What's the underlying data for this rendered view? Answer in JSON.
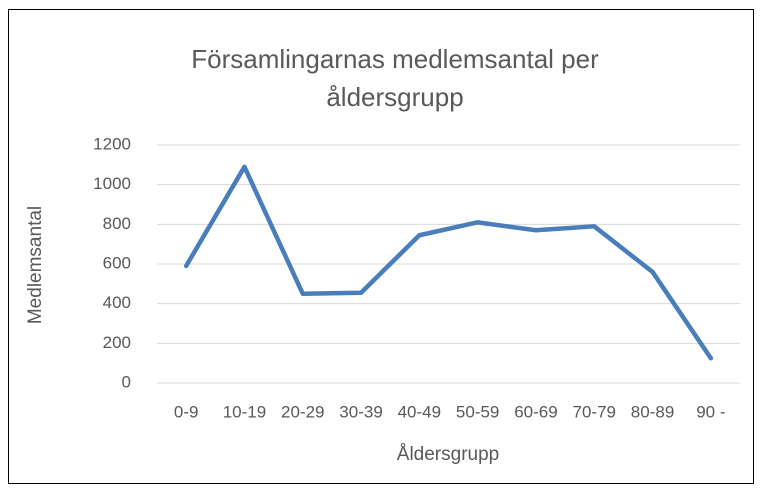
{
  "chart_data": {
    "type": "line",
    "title": "Församlingarnas medlemsantal per åldersgrupp",
    "x_label": "Åldersgrupp",
    "y_label": "Medlemsantal",
    "categories": [
      "0-9",
      "10-19",
      "20-29",
      "30-39",
      "40-49",
      "50-59",
      "60-69",
      "70-79",
      "80-89",
      "90 -"
    ],
    "series": [
      {
        "name": "Medlemsantal",
        "color": "#4a7ebb",
        "values": [
          590,
          1090,
          450,
          455,
          745,
          810,
          770,
          790,
          560,
          125
        ]
      }
    ],
    "ylim": [
      0,
      1200
    ],
    "yticks": [
      0,
      200,
      400,
      600,
      800,
      1000,
      1200
    ],
    "grid": true
  }
}
